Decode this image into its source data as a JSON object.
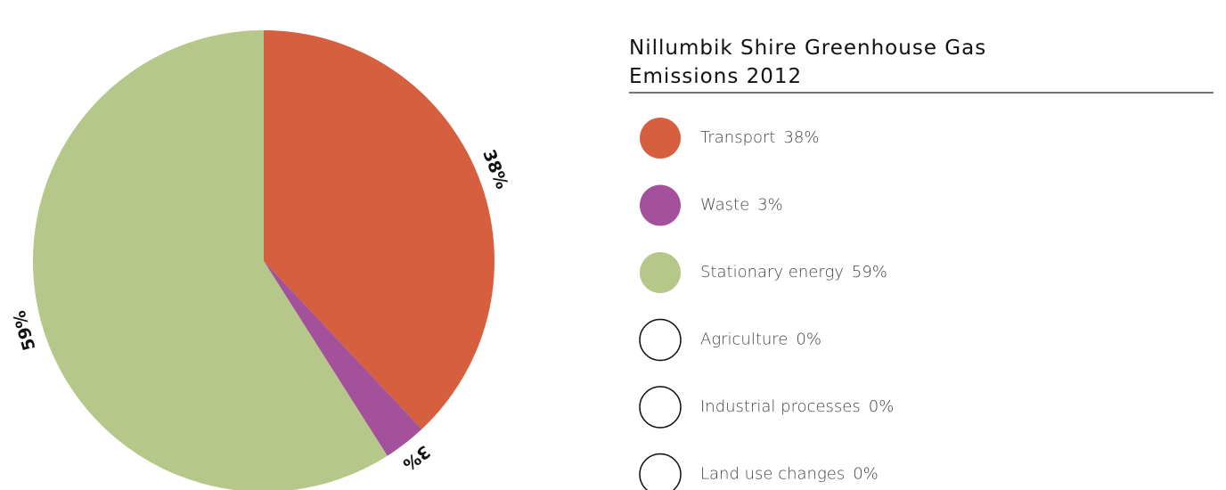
{
  "chart_data": {
    "type": "pie",
    "title": "Nillumbik Shire Greenhouse Gas Emissions 2012",
    "categories": [
      "Transport",
      "Waste",
      "Stationary energy",
      "Agriculture",
      "Industrial processes",
      "Land use changes"
    ],
    "values": [
      38,
      3,
      59,
      0,
      0,
      0
    ],
    "value_labels": [
      "38%",
      "3%",
      "59%",
      "0%",
      "0%",
      "0%"
    ],
    "colors": [
      "#d55f3f",
      "#a2519a",
      "#b5c789",
      "#ffffff",
      "#ffffff",
      "#ffffff"
    ]
  }
}
